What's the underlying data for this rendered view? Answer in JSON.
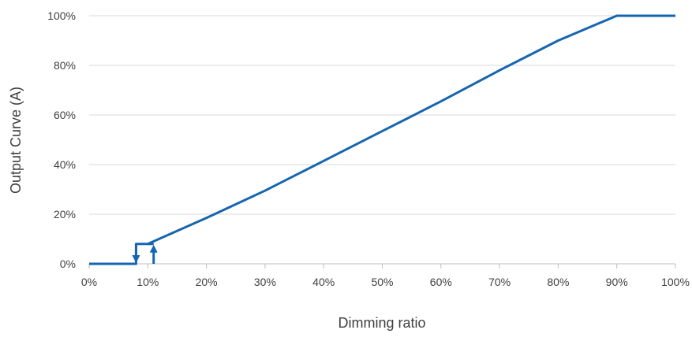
{
  "chart_data": {
    "type": "line",
    "title": "",
    "xlabel": "Dimming ratio",
    "ylabel": "Output Curve (A)",
    "xlim": [
      0,
      100
    ],
    "ylim": [
      0,
      100
    ],
    "x_ticks": [
      "0%",
      "10%",
      "20%",
      "30%",
      "40%",
      "50%",
      "60%",
      "70%",
      "80%",
      "90%",
      "100%"
    ],
    "y_ticks": [
      "0%",
      "20%",
      "40%",
      "60%",
      "80%",
      "100%"
    ],
    "grid": "horizontal",
    "legend": "none",
    "series": [
      {
        "color": "#1565b0",
        "points": [
          [
            0,
            0
          ],
          [
            8,
            0
          ],
          [
            8,
            8
          ],
          [
            10,
            8
          ],
          [
            20,
            18.5
          ],
          [
            30,
            29.5
          ],
          [
            40,
            41.5
          ],
          [
            50,
            53.5
          ],
          [
            60,
            65.5
          ],
          [
            70,
            78
          ],
          [
            80,
            90
          ],
          [
            90,
            100
          ],
          [
            100,
            100
          ]
        ]
      }
    ],
    "hysteresis": {
      "color": "#1565b0",
      "down_arrow": {
        "x": 8,
        "from": 8,
        "to": 0
      },
      "up_arrow": {
        "x": 11,
        "from": 0,
        "to": 8
      },
      "bridge": [
        [
          10,
          8
        ],
        [
          11,
          8
        ]
      ]
    }
  }
}
